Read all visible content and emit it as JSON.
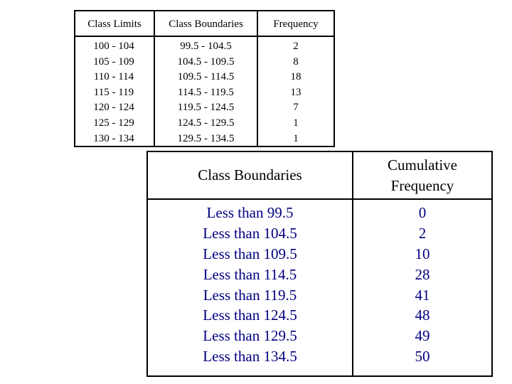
{
  "frequency_table": {
    "headers": {
      "class_limits": "Class Limits",
      "class_boundaries": "Class Boundaries",
      "frequency": "Frequency"
    },
    "class_limits": [
      "100 - 104",
      "105 - 109",
      "110 - 114",
      "115 - 119",
      "120 - 124",
      "125 - 129",
      "130 - 134"
    ],
    "class_boundaries": [
      "99.5 - 104.5",
      "104.5 - 109.5",
      "109.5 - 114.5",
      "114.5 - 119.5",
      "119.5 - 124.5",
      "124.5 - 129.5",
      "129.5 - 134.5"
    ],
    "frequency": [
      "2",
      "8",
      "18",
      "13",
      "7",
      "1",
      "1"
    ]
  },
  "cumulative_table": {
    "headers": {
      "class_boundaries": "Class Boundaries",
      "cumulative_frequency": "Cumulative Frequency"
    },
    "class_boundaries": [
      "Less than 99.5",
      "Less than 104.5",
      "Less than 109.5",
      "Less than 114.5",
      "Less than 119.5",
      "Less than 124.5",
      "Less than 129.5",
      "Less than 134.5"
    ],
    "cumulative_frequency": [
      "0",
      "2",
      "10",
      "28",
      "41",
      "48",
      "49",
      "50"
    ]
  },
  "colors": {
    "text": "#000000",
    "cumulative_values": "#000080",
    "border": "#000000",
    "background": "#ffffff"
  }
}
